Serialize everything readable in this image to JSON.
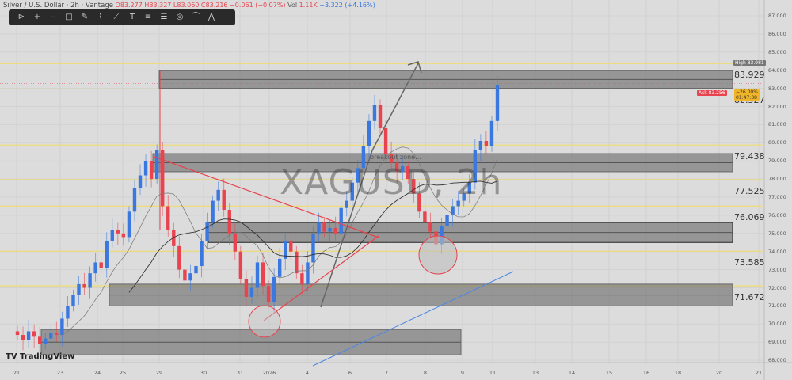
{
  "header": {
    "symbol": "Silver / U.S. Dollar · 2h · Vantage",
    "open": "O83.277",
    "high": "H83.327",
    "low": "L83.060",
    "close": "C83.216",
    "change": "−0.061 (−0.07%)",
    "vol_label": "Vol",
    "vol": "1.11K",
    "vol_change": "+3.322 (+4.16%)"
  },
  "toolbar": {
    "icons": [
      "play-circle-icon",
      "crosshair-icon",
      "horizontal-line-icon",
      "rectangle-icon",
      "brush-icon",
      "path-icon",
      "trend-line-icon",
      "text-icon",
      "parallel-channel-icon",
      "long-position-icon",
      "circle-icon",
      "arc-icon",
      "pattern-icon"
    ]
  },
  "watermark": "XAGUSD, 2h",
  "annotation": "breakout zone...",
  "logo": "TradingView",
  "levels": [
    "83.929",
    "82.527",
    "79.438",
    "77.525",
    "76.069",
    "73.585",
    "71.672"
  ],
  "price_tags": {
    "high_label": "High",
    "high": "83.981",
    "ask_label": "Ask",
    "ask": "83.256",
    "change": "−26.00%",
    "countdown": "01:47:38"
  },
  "colors": {
    "up": "#3a78e0",
    "down": "#e8434e",
    "level": "#f0dc6e",
    "zone": "#8c8c8c"
  },
  "chart_data": {
    "type": "candlestick",
    "symbol": "XAGUSD",
    "interval": "2h",
    "ylim": [
      67.7,
      87.6
    ],
    "y_ticks": [
      "87.000",
      "86.000",
      "85.000",
      "84.000",
      "83.000",
      "82.000",
      "81.000",
      "80.000",
      "79.000",
      "78.000",
      "77.000",
      "76.000",
      "75.000",
      "74.000",
      "73.000",
      "72.000",
      "71.000",
      "70.000",
      "69.000",
      "68.000"
    ],
    "x_ticks": [
      "21",
      "23",
      "24",
      "25",
      "29",
      "30",
      "31",
      "2026",
      "4",
      "6",
      "7",
      "8",
      "9",
      "11",
      "13",
      "14",
      "15",
      "16",
      "18",
      "20",
      "21"
    ],
    "closes": [
      69.4,
      69.1,
      69.6,
      69.3,
      68.9,
      69.2,
      69.5,
      69.4,
      70.3,
      71.0,
      71.6,
      72.2,
      72.0,
      72.8,
      73.4,
      73.1,
      74.6,
      75.2,
      75.0,
      74.8,
      76.2,
      77.5,
      78.2,
      79.0,
      78.0,
      79.6,
      76.5,
      75.2,
      74.3,
      73.0,
      72.4,
      72.8,
      73.2,
      74.6,
      75.6,
      76.8,
      77.4,
      76.3,
      75.0,
      74.0,
      72.5,
      71.5,
      72.0,
      73.4,
      72.1,
      71.2,
      72.6,
      73.6,
      74.6,
      74.0,
      72.8,
      72.2,
      73.4,
      75.0,
      75.6,
      75.1,
      75.3,
      75.0,
      76.4,
      76.8,
      77.8,
      78.6,
      79.8,
      81.2,
      82.1,
      80.8,
      79.4,
      78.9,
      78.4,
      78.7,
      78.0,
      77.2,
      76.2,
      75.6,
      75.1,
      74.4,
      75.4,
      76.0,
      76.5,
      76.8,
      77.2,
      77.8,
      79.6,
      80.1,
      79.8,
      81.2,
      83.2
    ],
    "levels": [
      83.929,
      82.527,
      79.438,
      77.525,
      76.069,
      73.585,
      71.672
    ],
    "zones": [
      [
        83.0,
        83.98
      ],
      [
        78.4,
        79.4
      ],
      [
        74.5,
        75.6
      ],
      [
        71.0,
        72.2
      ],
      [
        68.3,
        69.7
      ]
    ],
    "last_price": 83.256,
    "high": 83.981
  }
}
